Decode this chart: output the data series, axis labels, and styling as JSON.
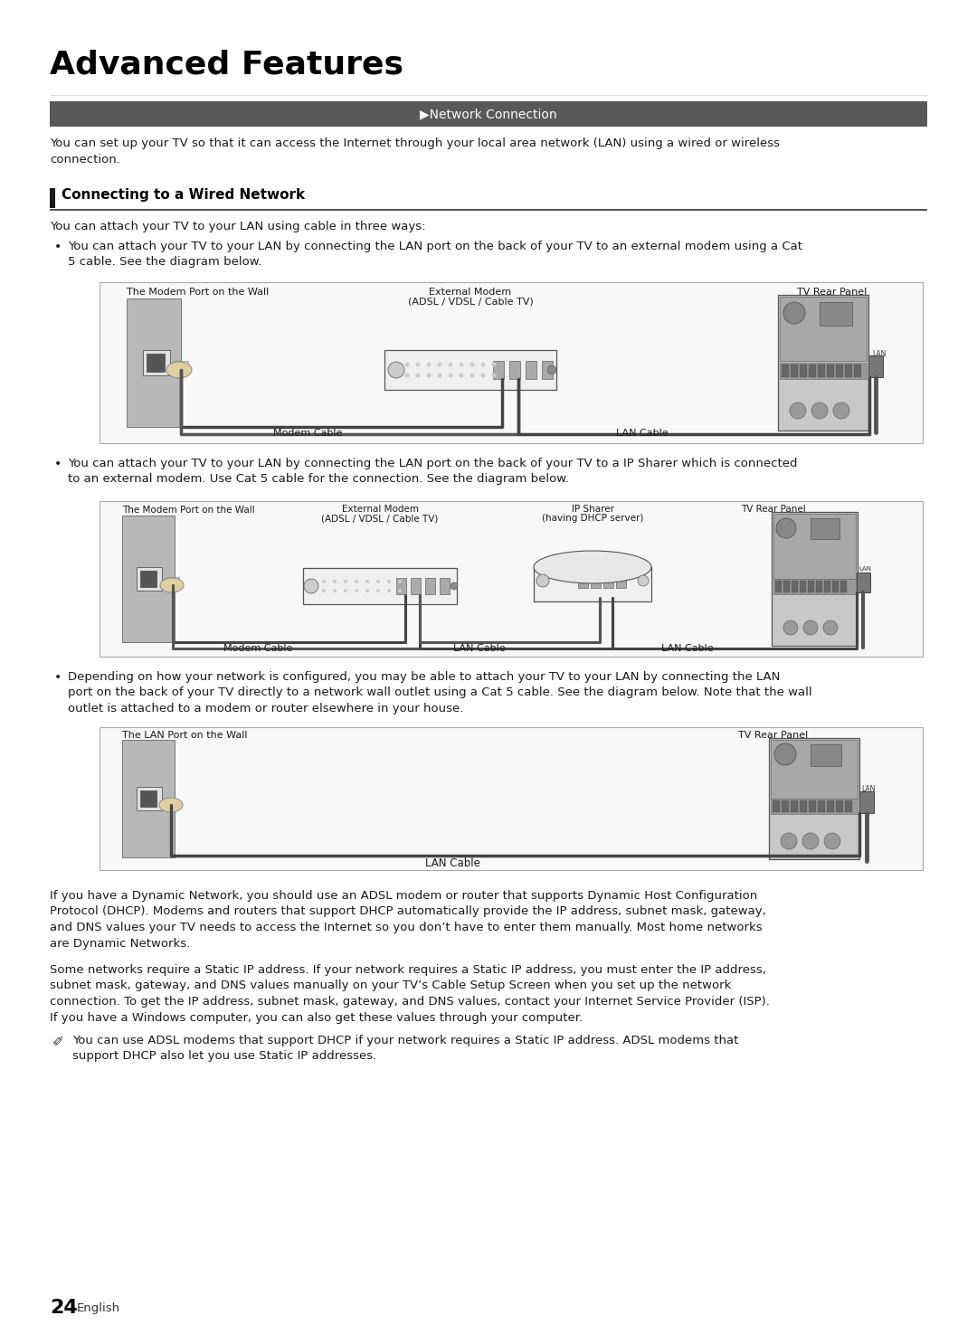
{
  "title": "Advanced Features",
  "header_bar_text": "Network Connection",
  "header_bar_color": "#595959",
  "header_text_color": "#ffffff",
  "intro_text": "You can set up your TV so that it can access the Internet through your local area network (LAN) using a wired or wireless\nconnection.",
  "section_title": "Connecting to a Wired Network",
  "section_intro": "You can attach your TV to your LAN using cable in three ways:",
  "bullet1": "You can attach your TV to your LAN by connecting the LAN port on the back of your TV to an external modem using a Cat\n5 cable. See the diagram below.",
  "bullet2": "You can attach your TV to your LAN by connecting the LAN port on the back of your TV to a IP Sharer which is connected\nto an external modem. Use Cat 5 cable for the connection. See the diagram below.",
  "bullet3": "Depending on how your network is configured, you may be able to attach your TV to your LAN by connecting the LAN\nport on the back of your TV directly to a network wall outlet using a Cat 5 cable. See the diagram below. Note that the wall\noutlet is attached to a modem or router elsewhere in your house.",
  "diagram1_labels": {
    "left": "The Modem Port on the Wall",
    "center": [
      "External Modem",
      "(ADSL / VDSL / Cable TV)"
    ],
    "right": "TV Rear Panel",
    "cable_left": "Modem Cable",
    "cable_right": "LAN Cable"
  },
  "diagram2_labels": {
    "left": "The Modem Port on the Wall",
    "center_left": [
      "External Modem",
      "(ADSL / VDSL / Cable TV)"
    ],
    "center_right": [
      "IP Sharer",
      "(having DHCP server)"
    ],
    "right": "TV Rear Panel",
    "cable_left": "Modem Cable",
    "cable_center": "LAN Cable",
    "cable_right": "LAN Cable"
  },
  "diagram3_labels": {
    "left": "The LAN Port on the Wall",
    "right": "TV Rear Panel",
    "cable": "LAN Cable"
  },
  "footer_text1": "If you have a Dynamic Network, you should use an ADSL modem or router that supports Dynamic Host Configuration\nProtocol (DHCP). Modems and routers that support DHCP automatically provide the IP address, subnet mask, gateway,\nand DNS values your TV needs to access the Internet so you don’t have to enter them manually. Most home networks\nare Dynamic Networks.",
  "footer_text2": "Some networks require a Static IP address. If your network requires a Static IP address, you must enter the IP address,\nsubnet mask, gateway, and DNS values manually on your TV’s Cable Setup Screen when you set up the network\nconnection. To get the IP address, subnet mask, gateway, and DNS values, contact your Internet Service Provider (ISP).\nIf you have a Windows computer, you can also get these values through your computer.",
  "note_text": "You can use ADSL modems that support DHCP if your network requires a Static IP address. ADSL modems that\nsupport DHCP also let you use Static IP addresses.",
  "page_number": "24",
  "page_lang": "English",
  "bg_color": "#ffffff",
  "diagram_bg": "#f5f5f5",
  "diagram_border": "#aaaaaa",
  "text_color": "#1a1a1a",
  "dark_gray": "#595959"
}
